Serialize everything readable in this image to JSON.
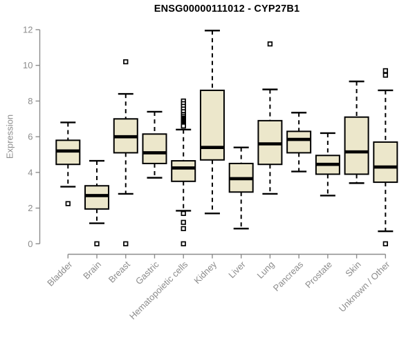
{
  "chart_data": {
    "type": "boxplot",
    "title": "ENSG00000111012 - CYP27B1",
    "ylabel": "Expression",
    "ylim": [
      0,
      12
    ],
    "yticks": [
      0,
      2,
      4,
      6,
      8,
      10,
      12
    ],
    "grid": false,
    "legend": "none",
    "categories": [
      "Bladder",
      "Brain",
      "Breast",
      "Gastric",
      "Hematopoietic cells",
      "Kidney",
      "Liver",
      "Lung",
      "Pancreas",
      "Prostate",
      "Skin",
      "Unknown / Other"
    ],
    "series": [
      {
        "name": "Bladder",
        "low": 3.2,
        "q1": 4.45,
        "median": 5.2,
        "q3": 5.8,
        "high": 6.8,
        "outliers": [
          2.25
        ]
      },
      {
        "name": "Brain",
        "low": 1.15,
        "q1": 1.95,
        "median": 2.7,
        "q3": 3.25,
        "high": 4.65,
        "outliers": [
          0
        ]
      },
      {
        "name": "Breast",
        "low": 2.8,
        "q1": 5.1,
        "median": 6.0,
        "q3": 7.0,
        "high": 8.4,
        "outliers": [
          10.2,
          0
        ]
      },
      {
        "name": "Gastric",
        "low": 3.7,
        "q1": 4.5,
        "median": 5.1,
        "q3": 6.15,
        "high": 7.4,
        "outliers": []
      },
      {
        "name": "Hematopoietic cells",
        "low": 1.85,
        "q1": 3.5,
        "median": 4.25,
        "q3": 4.65,
        "high": 6.4,
        "outliers": [
          8.0,
          7.85,
          7.7,
          7.55,
          7.4,
          7.25,
          7.15,
          7.05,
          7.0,
          6.95,
          6.9,
          6.85,
          6.8,
          6.75,
          6.7,
          6.65,
          6.6,
          1.7,
          1.2,
          0.85,
          0
        ]
      },
      {
        "name": "Kidney",
        "low": 1.7,
        "q1": 4.7,
        "median": 5.4,
        "q3": 8.6,
        "high": 11.95,
        "outliers": []
      },
      {
        "name": "Liver",
        "low": 0.85,
        "q1": 2.9,
        "median": 3.65,
        "q3": 4.5,
        "high": 5.4,
        "outliers": []
      },
      {
        "name": "Lung",
        "low": 2.8,
        "q1": 4.45,
        "median": 5.6,
        "q3": 6.9,
        "high": 8.65,
        "outliers": [
          11.2
        ]
      },
      {
        "name": "Pancreas",
        "low": 4.05,
        "q1": 5.1,
        "median": 5.85,
        "q3": 6.3,
        "high": 7.35,
        "outliers": []
      },
      {
        "name": "Prostate",
        "low": 2.7,
        "q1": 3.9,
        "median": 4.45,
        "q3": 4.95,
        "high": 6.2,
        "outliers": []
      },
      {
        "name": "Skin",
        "low": 3.4,
        "q1": 3.9,
        "median": 5.15,
        "q3": 7.1,
        "high": 9.1,
        "outliers": []
      },
      {
        "name": "Unknown / Other",
        "low": 0.7,
        "q1": 3.45,
        "median": 4.3,
        "q3": 5.7,
        "high": 8.6,
        "outliers": [
          9.7,
          9.45,
          0
        ]
      }
    ],
    "colors": {
      "box_fill": "#ECE7CB",
      "box_border": "#000000",
      "median": "#000000",
      "whisker": "#000000",
      "outlier_fill": "#ffffff",
      "axis_line": "#8c8c8c",
      "axis_text": "#8c8c8c",
      "title_text": "#000000",
      "background": "#ffffff"
    }
  }
}
